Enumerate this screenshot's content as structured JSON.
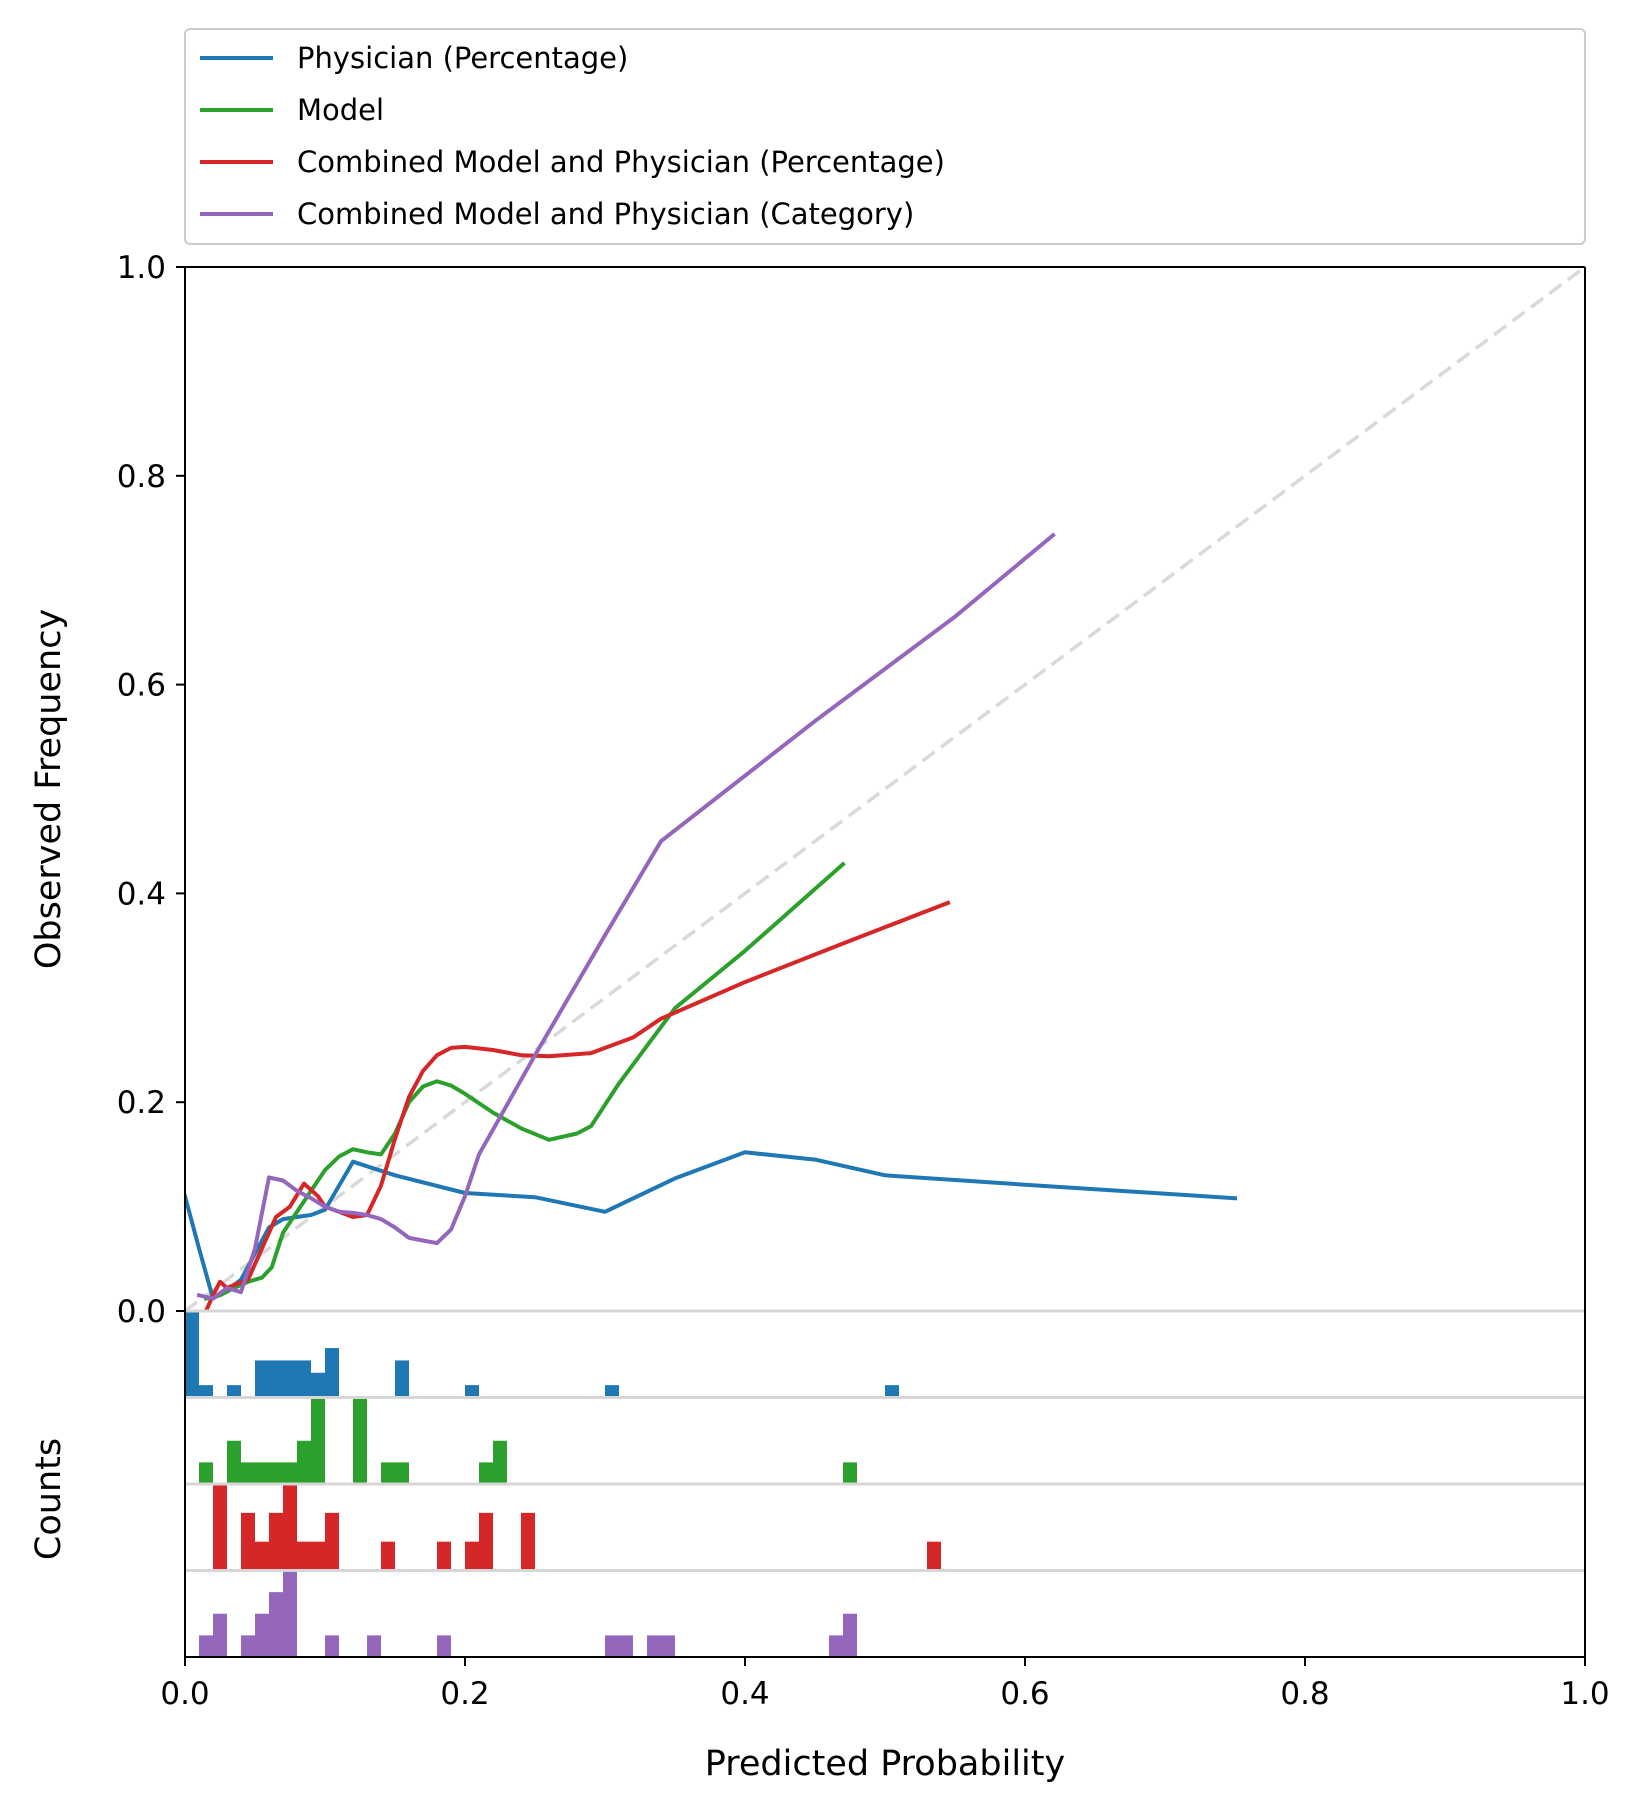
{
  "chart_data": {
    "type": "line",
    "xlabel": "Predicted Probability",
    "ylabel": "Observed Frequency",
    "hist_ylabel": "Counts",
    "xlim": [
      0,
      1
    ],
    "ylim": [
      0,
      1
    ],
    "x_ticks": [
      "0.0",
      "0.2",
      "0.4",
      "0.6",
      "0.8",
      "1.0"
    ],
    "y_ticks": [
      "0.0",
      "0.2",
      "0.4",
      "0.6",
      "0.8",
      "1.0"
    ],
    "legend_position": "top",
    "reference_line": {
      "style": "dashed",
      "color": "#d9d9d9",
      "points": [
        [
          0,
          0
        ],
        [
          1,
          1
        ]
      ]
    },
    "series": [
      {
        "name": "Physician (Percentage)",
        "color": "#1f77b4",
        "points": [
          [
            0,
            0.11
          ],
          [
            0.01,
            0.06
          ],
          [
            0.02,
            0.012
          ],
          [
            0.03,
            0.02
          ],
          [
            0.04,
            0.03
          ],
          [
            0.05,
            0.055
          ],
          [
            0.06,
            0.08
          ],
          [
            0.07,
            0.088
          ],
          [
            0.08,
            0.09
          ],
          [
            0.09,
            0.092
          ],
          [
            0.1,
            0.097
          ],
          [
            0.12,
            0.143
          ],
          [
            0.15,
            0.13
          ],
          [
            0.2,
            0.113
          ],
          [
            0.25,
            0.109
          ],
          [
            0.3,
            0.095
          ],
          [
            0.35,
            0.127
          ],
          [
            0.4,
            0.152
          ],
          [
            0.45,
            0.145
          ],
          [
            0.5,
            0.13
          ],
          [
            0.6,
            0.121
          ],
          [
            0.75,
            0.108
          ]
        ],
        "hist_bins": [
          [
            0.0,
            0.01,
            7
          ],
          [
            0.01,
            0.02,
            1
          ],
          [
            0.03,
            0.04,
            1
          ],
          [
            0.05,
            0.09,
            3
          ],
          [
            0.09,
            0.1,
            2
          ],
          [
            0.1,
            0.11,
            4
          ],
          [
            0.15,
            0.16,
            3
          ],
          [
            0.2,
            0.21,
            1
          ],
          [
            0.3,
            0.31,
            1
          ],
          [
            0.5,
            0.51,
            1
          ]
        ]
      },
      {
        "name": "Model",
        "color": "#2ca02c",
        "points": [
          [
            0.015,
            0.012
          ],
          [
            0.025,
            0.015
          ],
          [
            0.035,
            0.022
          ],
          [
            0.045,
            0.028
          ],
          [
            0.055,
            0.032
          ],
          [
            0.062,
            0.042
          ],
          [
            0.07,
            0.075
          ],
          [
            0.08,
            0.095
          ],
          [
            0.09,
            0.115
          ],
          [
            0.1,
            0.135
          ],
          [
            0.11,
            0.148
          ],
          [
            0.12,
            0.155
          ],
          [
            0.13,
            0.152
          ],
          [
            0.14,
            0.15
          ],
          [
            0.15,
            0.17
          ],
          [
            0.16,
            0.2
          ],
          [
            0.17,
            0.215
          ],
          [
            0.18,
            0.22
          ],
          [
            0.19,
            0.216
          ],
          [
            0.2,
            0.208
          ],
          [
            0.22,
            0.19
          ],
          [
            0.24,
            0.175
          ],
          [
            0.26,
            0.164
          ],
          [
            0.28,
            0.17
          ],
          [
            0.29,
            0.177
          ],
          [
            0.31,
            0.218
          ],
          [
            0.35,
            0.29
          ],
          [
            0.4,
            0.345
          ],
          [
            0.47,
            0.428
          ]
        ],
        "hist_bins": [
          [
            0.01,
            0.02,
            1
          ],
          [
            0.03,
            0.04,
            2
          ],
          [
            0.04,
            0.08,
            1
          ],
          [
            0.08,
            0.09,
            2
          ],
          [
            0.09,
            0.1,
            4
          ],
          [
            0.12,
            0.13,
            4
          ],
          [
            0.14,
            0.16,
            1
          ],
          [
            0.21,
            0.22,
            1
          ],
          [
            0.22,
            0.23,
            2
          ],
          [
            0.47,
            0.48,
            1
          ]
        ]
      },
      {
        "name": "Combined Model and Physician (Percentage)",
        "color": "#d62728",
        "points": [
          [
            0.015,
            0
          ],
          [
            0.02,
            0.015
          ],
          [
            0.025,
            0.028
          ],
          [
            0.03,
            0.022
          ],
          [
            0.035,
            0.025
          ],
          [
            0.045,
            0.03
          ],
          [
            0.055,
            0.06
          ],
          [
            0.065,
            0.09
          ],
          [
            0.075,
            0.1
          ],
          [
            0.085,
            0.122
          ],
          [
            0.095,
            0.11
          ],
          [
            0.1,
            0.1
          ],
          [
            0.11,
            0.095
          ],
          [
            0.12,
            0.09
          ],
          [
            0.13,
            0.092
          ],
          [
            0.14,
            0.12
          ],
          [
            0.15,
            0.165
          ],
          [
            0.16,
            0.205
          ],
          [
            0.17,
            0.23
          ],
          [
            0.18,
            0.245
          ],
          [
            0.19,
            0.252
          ],
          [
            0.2,
            0.253
          ],
          [
            0.22,
            0.25
          ],
          [
            0.24,
            0.245
          ],
          [
            0.26,
            0.244
          ],
          [
            0.29,
            0.247
          ],
          [
            0.32,
            0.262
          ],
          [
            0.34,
            0.28
          ],
          [
            0.4,
            0.315
          ],
          [
            0.47,
            0.352
          ],
          [
            0.545,
            0.391
          ]
        ],
        "hist_bins": [
          [
            0.02,
            0.03,
            3
          ],
          [
            0.04,
            0.05,
            2
          ],
          [
            0.05,
            0.06,
            1
          ],
          [
            0.06,
            0.07,
            2
          ],
          [
            0.07,
            0.08,
            3
          ],
          [
            0.08,
            0.1,
            1
          ],
          [
            0.1,
            0.11,
            2
          ],
          [
            0.14,
            0.15,
            1
          ],
          [
            0.18,
            0.19,
            1
          ],
          [
            0.2,
            0.21,
            1
          ],
          [
            0.21,
            0.22,
            2
          ],
          [
            0.24,
            0.25,
            2
          ],
          [
            0.53,
            0.54,
            1
          ]
        ]
      },
      {
        "name": "Combined Model and Physician (Category)",
        "color": "#9467bd",
        "points": [
          [
            0.01,
            0.015
          ],
          [
            0.02,
            0.012
          ],
          [
            0.03,
            0.022
          ],
          [
            0.04,
            0.018
          ],
          [
            0.05,
            0.06
          ],
          [
            0.06,
            0.128
          ],
          [
            0.07,
            0.125
          ],
          [
            0.08,
            0.115
          ],
          [
            0.09,
            0.108
          ],
          [
            0.1,
            0.1
          ],
          [
            0.11,
            0.095
          ],
          [
            0.12,
            0.094
          ],
          [
            0.13,
            0.092
          ],
          [
            0.14,
            0.088
          ],
          [
            0.15,
            0.08
          ],
          [
            0.16,
            0.07
          ],
          [
            0.18,
            0.065
          ],
          [
            0.19,
            0.078
          ],
          [
            0.2,
            0.11
          ],
          [
            0.21,
            0.15
          ],
          [
            0.25,
            0.245
          ],
          [
            0.3,
            0.36
          ],
          [
            0.34,
            0.45
          ],
          [
            0.45,
            0.565
          ],
          [
            0.55,
            0.665
          ],
          [
            0.62,
            0.743
          ]
        ],
        "hist_bins": [
          [
            0.01,
            0.02,
            1
          ],
          [
            0.02,
            0.03,
            2
          ],
          [
            0.04,
            0.05,
            1
          ],
          [
            0.05,
            0.06,
            2
          ],
          [
            0.06,
            0.07,
            3
          ],
          [
            0.07,
            0.08,
            4
          ],
          [
            0.1,
            0.11,
            1
          ],
          [
            0.13,
            0.14,
            1
          ],
          [
            0.18,
            0.19,
            1
          ],
          [
            0.3,
            0.32,
            1
          ],
          [
            0.33,
            0.35,
            1
          ],
          [
            0.46,
            0.47,
            1
          ],
          [
            0.47,
            0.48,
            2
          ]
        ]
      }
    ]
  }
}
